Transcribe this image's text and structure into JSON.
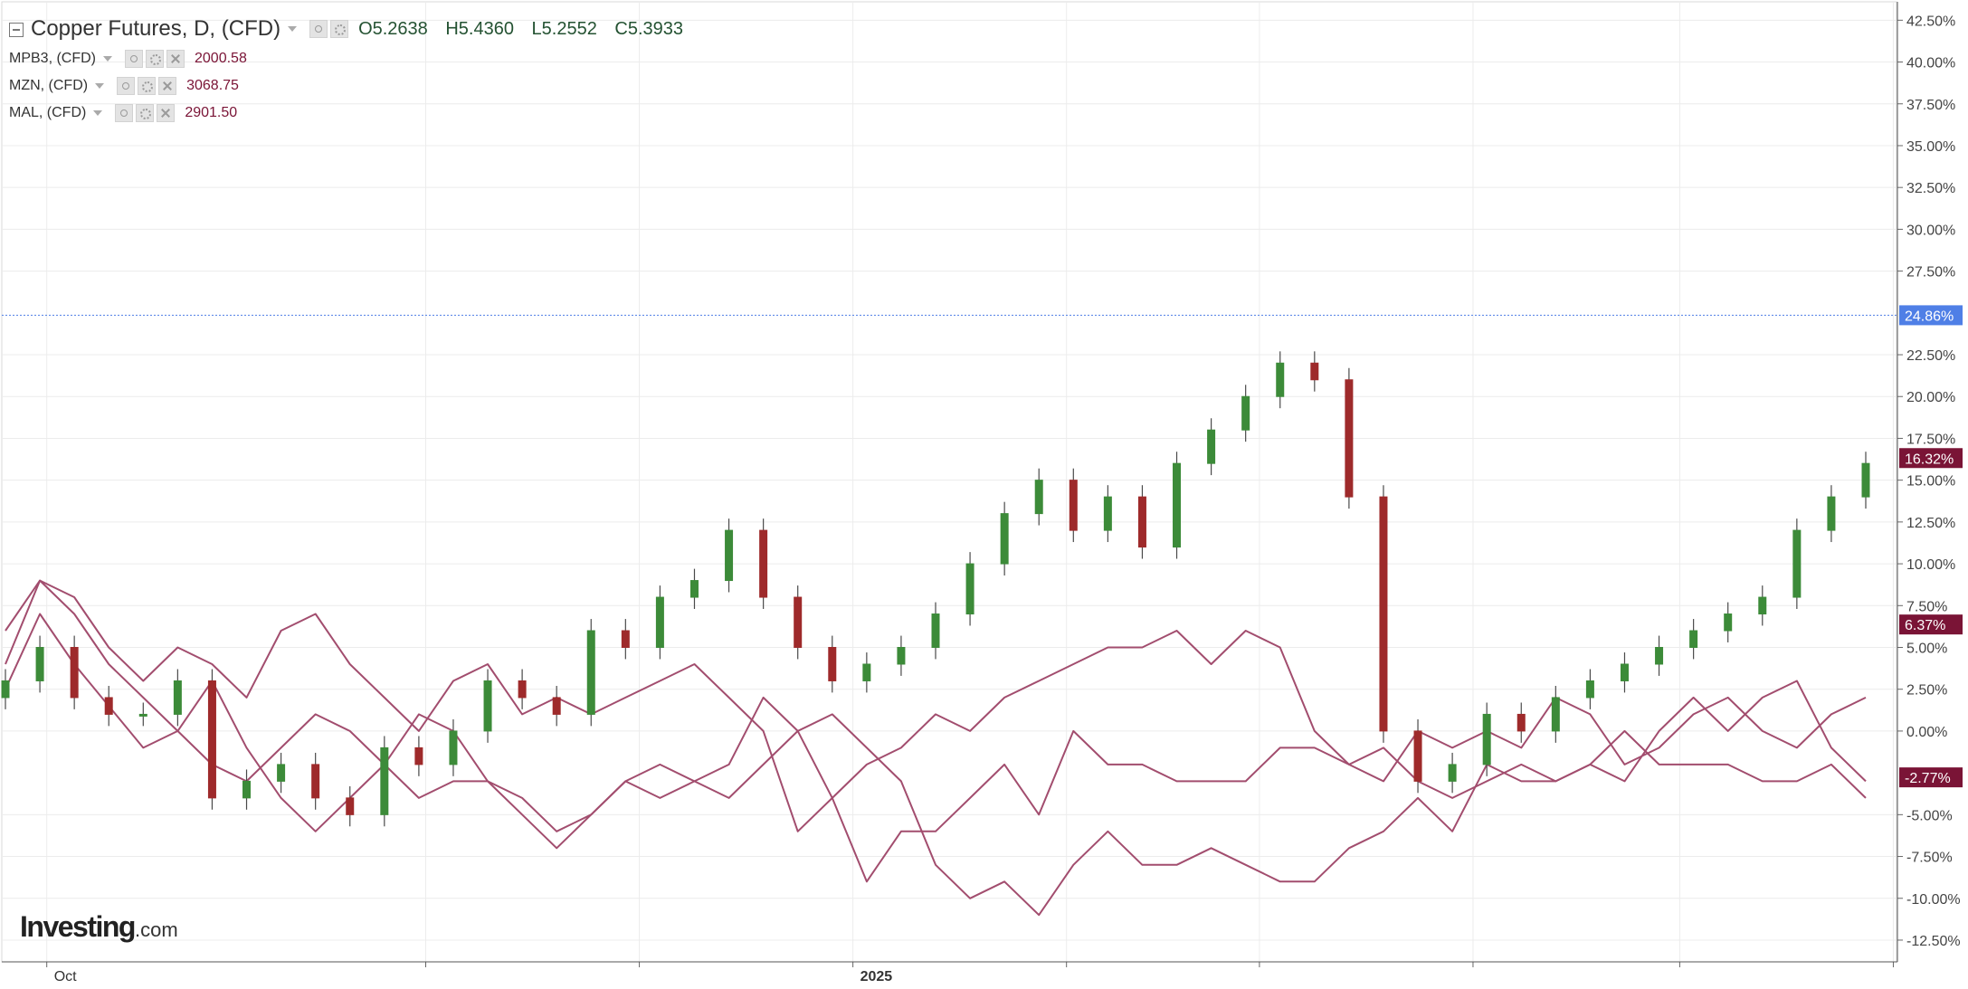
{
  "header": {
    "title": "Copper Futures, D, (CFD)",
    "open": "O5.2638",
    "high": "H5.4360",
    "low": "L5.2552",
    "close": "C5.3933"
  },
  "compare": [
    {
      "name": "MPB3, (CFD)",
      "value": "2000.58"
    },
    {
      "name": "MZN, (CFD)",
      "value": "3068.75"
    },
    {
      "name": "MAL, (CFD)",
      "value": "2901.50"
    }
  ],
  "logo": {
    "main": "Investing",
    "suffix": ".com"
  },
  "colors": {
    "up": "#3c8b39",
    "down": "#9e2a2b",
    "compare": "#a24d6e",
    "accent": "#4f7fe6",
    "badge": "#7a1436"
  },
  "chart_data": {
    "type": "candlestick",
    "title": "Copper Futures, D, (CFD)",
    "y_unit": "%",
    "ylim": [
      -13.8,
      43.6
    ],
    "xlim": [
      0,
      270
    ],
    "grid": true,
    "y_ticks": [
      {
        "v": 42.5,
        "label": "42.50%"
      },
      {
        "v": 40,
        "label": "40.00%"
      },
      {
        "v": 37.5,
        "label": "37.50%"
      },
      {
        "v": 35,
        "label": "35.00%"
      },
      {
        "v": 32.5,
        "label": "32.50%"
      },
      {
        "v": 30,
        "label": "30.00%"
      },
      {
        "v": 27.5,
        "label": "27.50%"
      },
      {
        "v": 22.5,
        "label": "22.50%"
      },
      {
        "v": 20,
        "label": "20.00%"
      },
      {
        "v": 17.5,
        "label": "17.50%"
      },
      {
        "v": 15,
        "label": "15.00%"
      },
      {
        "v": 12.5,
        "label": "12.50%"
      },
      {
        "v": 10,
        "label": "10.00%"
      },
      {
        "v": 7.5,
        "label": "7.50%"
      },
      {
        "v": 5,
        "label": "5.00%"
      },
      {
        "v": 2.5,
        "label": "2.50%"
      },
      {
        "v": 0,
        "label": "0.00%"
      },
      {
        "v": -5,
        "label": "-5.00%"
      },
      {
        "v": -7.5,
        "label": "-7.50%"
      },
      {
        "v": -10,
        "label": "-10.00%"
      },
      {
        "v": -12.5,
        "label": "-12.50%"
      }
    ],
    "x_ticks": [
      {
        "d": 6,
        "label": "Oct",
        "bold": false
      },
      {
        "d": 61,
        "label": "",
        "bold": false
      },
      {
        "d": 92,
        "label": "",
        "bold": false
      },
      {
        "d": 123,
        "label": "2025",
        "bold": true
      },
      {
        "d": 154,
        "label": "",
        "bold": false
      },
      {
        "d": 182,
        "label": "",
        "bold": false
      },
      {
        "d": 213,
        "label": "",
        "bold": false
      },
      {
        "d": 243,
        "label": "",
        "bold": false
      },
      {
        "d": 274,
        "label": "",
        "bold": false
      }
    ],
    "current_line": 24.86,
    "badges": [
      {
        "label": "24.86%",
        "v": 24.86,
        "color": "#4f7fe6"
      },
      {
        "label": "16.32%",
        "v": 16.32,
        "color": "#7a1436"
      },
      {
        "label": "6.37%",
        "v": 6.37,
        "color": "#7a1436"
      },
      {
        "label": "-2.77%",
        "v": -2.77,
        "color": "#7a1436"
      }
    ],
    "series": [
      {
        "name": "MPB3, (CFD)",
        "kind": "line",
        "x": [
          0,
          5,
          10,
          15,
          20,
          25,
          30,
          35,
          40,
          45,
          50,
          55,
          60,
          65,
          70,
          75,
          80,
          85,
          90,
          95,
          100,
          105,
          110,
          115,
          120,
          125,
          130,
          135,
          140,
          145,
          150,
          155,
          160,
          165,
          170,
          175,
          180,
          185,
          190,
          195,
          200,
          205,
          210,
          215,
          220,
          225,
          230,
          235,
          240,
          245,
          250,
          255,
          260,
          265,
          270
        ],
        "y": [
          2.5,
          7,
          4,
          1.5,
          -1,
          0,
          3,
          -1,
          -4,
          -6,
          -4,
          -2,
          1,
          0,
          -3,
          -5,
          -7,
          -5,
          -3,
          -2,
          -3,
          -4,
          -2,
          0,
          1,
          -1,
          -3,
          -8,
          -10,
          -9,
          -11,
          -8,
          -6,
          -8,
          -8,
          -7,
          -8,
          -9,
          -9,
          -7,
          -6,
          -4,
          -6,
          -2,
          -3,
          -3,
          -2,
          -3,
          0,
          2,
          0,
          2,
          3,
          -1,
          -3
        ]
      },
      {
        "name": "MZN, (CFD)",
        "kind": "line",
        "x": [
          0,
          5,
          10,
          15,
          20,
          25,
          30,
          35,
          40,
          45,
          50,
          55,
          60,
          65,
          70,
          75,
          80,
          85,
          90,
          95,
          100,
          105,
          110,
          115,
          120,
          125,
          130,
          135,
          140,
          145,
          150,
          155,
          160,
          165,
          170,
          175,
          180,
          185,
          190,
          195,
          200,
          205,
          210,
          215,
          220,
          225,
          230,
          235,
          240,
          245,
          250,
          255,
          260,
          265,
          270
        ],
        "y": [
          4,
          9,
          7,
          4,
          2,
          0,
          -2,
          -3,
          -1,
          1,
          0,
          -2,
          -4,
          -3,
          -3,
          -4,
          -6,
          -5,
          -3,
          -4,
          -3,
          -2,
          2,
          0,
          -4,
          -9,
          -6,
          -6,
          -4,
          -2,
          -5,
          0,
          -2,
          -2,
          -3,
          -3,
          -3,
          -1,
          -1,
          -2,
          -1,
          -3,
          -4,
          -3,
          -2,
          -3,
          -2,
          0,
          -2,
          -2,
          -2,
          -3,
          -3,
          -2,
          -4
        ]
      },
      {
        "name": "MAL, (CFD)",
        "kind": "line",
        "x": [
          0,
          5,
          10,
          15,
          20,
          25,
          30,
          35,
          40,
          45,
          50,
          55,
          60,
          65,
          70,
          75,
          80,
          85,
          90,
          95,
          100,
          105,
          110,
          115,
          120,
          125,
          130,
          135,
          140,
          145,
          150,
          155,
          160,
          165,
          170,
          175,
          180,
          185,
          190,
          195,
          200,
          205,
          210,
          215,
          220,
          225,
          230,
          235,
          240,
          245,
          250,
          255,
          260,
          265,
          270
        ],
        "y": [
          6,
          9,
          8,
          5,
          3,
          5,
          4,
          2,
          6,
          7,
          4,
          2,
          0,
          3,
          4,
          1,
          2,
          1,
          2,
          3,
          4,
          2,
          0,
          -6,
          -4,
          -2,
          -1,
          1,
          0,
          2,
          3,
          4,
          5,
          5,
          6,
          4,
          6,
          5,
          0,
          -2,
          -3,
          0,
          -1,
          0,
          -1,
          2,
          1,
          -2,
          -1,
          1,
          2,
          0,
          -1,
          1,
          2
        ]
      },
      {
        "name": "Copper Futures, D, (CFD)",
        "kind": "candles",
        "t": [
          0,
          5,
          10,
          15,
          20,
          25,
          30,
          35,
          40,
          45,
          50,
          55,
          60,
          65,
          70,
          75,
          80,
          85,
          90,
          95,
          100,
          105,
          110,
          115,
          120,
          125,
          130,
          135,
          140,
          145,
          150,
          155,
          160,
          165,
          170,
          175,
          180,
          185,
          190,
          195,
          200,
          205,
          210,
          215,
          220,
          225,
          230,
          235,
          240,
          245,
          250,
          255,
          260,
          265,
          270
        ],
        "c": [
          3,
          5,
          2,
          1,
          1,
          3,
          -4,
          -3,
          -2,
          -4,
          -5,
          -1,
          -2,
          0,
          3,
          2,
          1,
          6,
          5,
          8,
          9,
          12,
          8,
          5,
          3,
          4,
          5,
          7,
          10,
          13,
          15,
          12,
          14,
          11,
          16,
          18,
          20,
          22,
          21,
          14,
          0,
          -3,
          -2,
          1,
          0,
          2,
          3,
          4,
          5,
          6,
          7,
          8,
          12,
          14,
          16
        ]
      }
    ]
  }
}
